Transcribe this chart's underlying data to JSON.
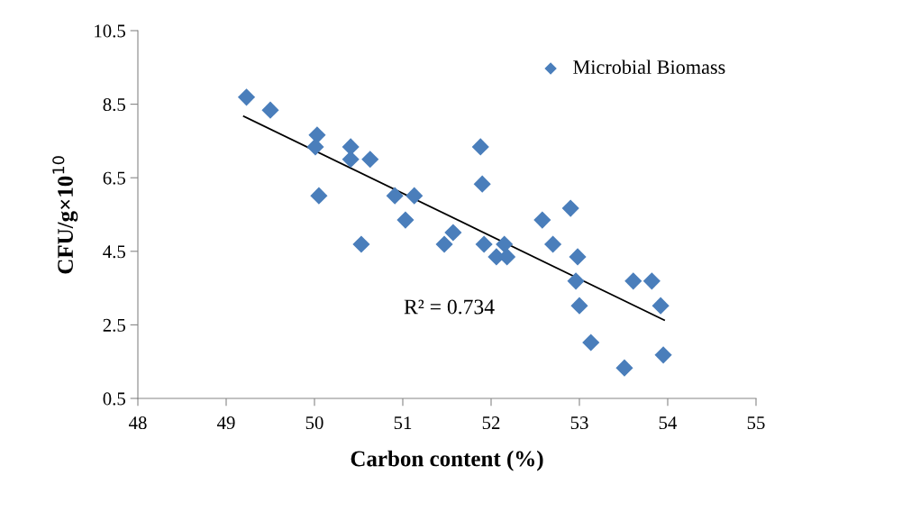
{
  "chart_data": {
    "type": "scatter",
    "xlabel": "Carbon content (%)",
    "ylabel": "CFU/g×10$^{10}$",
    "series": [
      {
        "name": "Microbial Biomass",
        "color": "#4a7ebb",
        "marker": "diamond",
        "x": [
          49.23,
          49.5,
          50.03,
          50.01,
          50.05,
          50.41,
          50.41,
          50.63,
          50.53,
          50.91,
          51.13,
          51.03,
          51.47,
          51.57,
          51.88,
          51.9,
          51.92,
          52.06,
          52.15,
          52.18,
          52.58,
          52.7,
          52.9,
          52.98,
          52.96,
          53.0,
          53.13,
          53.51,
          53.61,
          53.82,
          53.92,
          53.95
        ],
        "values": [
          8.69,
          8.34,
          7.66,
          7.34,
          6.01,
          7.34,
          7.0,
          7.0,
          4.69,
          6.01,
          6.01,
          5.35,
          4.69,
          5.01,
          7.34,
          6.33,
          4.69,
          4.35,
          4.69,
          4.35,
          5.35,
          4.69,
          5.67,
          4.35,
          3.69,
          3.02,
          2.02,
          1.33,
          3.69,
          3.69,
          3.02,
          1.68
        ]
      },
      {
        "type": "line",
        "color": "#000000",
        "x": [
          49.2,
          53.96
        ],
        "values": [
          8.17,
          2.63
        ]
      }
    ],
    "annotations": [
      "R² = 0.734"
    ],
    "xlim": [
      48,
      55
    ],
    "xticks": [
      48,
      49,
      50,
      51,
      52,
      53,
      54,
      55
    ],
    "ylim": [
      0.5,
      10.5
    ],
    "yticks": [
      {
        "value": 0.5,
        "label": "0.5"
      },
      {
        "value": 2.5,
        "label": "2.5"
      },
      {
        "value": 4.5,
        "label": "4.5"
      },
      {
        "value": 6.5,
        "label": "6.5"
      },
      {
        "value": 8.5,
        "label": "8.5"
      },
      {
        "value": 10.5,
        "label": "10.5"
      }
    ],
    "grid": false,
    "legend": "top right"
  }
}
